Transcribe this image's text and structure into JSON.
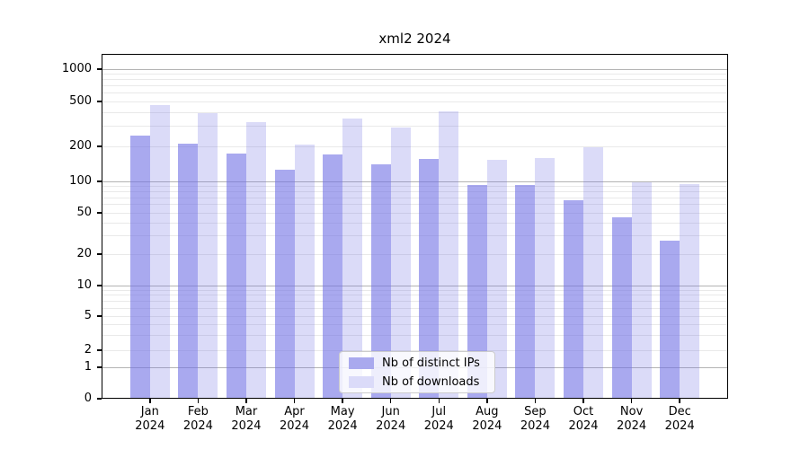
{
  "title": "xml2 2024",
  "chart_data": {
    "type": "bar",
    "title": "xml2 2024",
    "categories": [
      "Jan 2024",
      "Feb 2024",
      "Mar 2024",
      "Apr 2024",
      "May 2024",
      "Jun 2024",
      "Jul 2024",
      "Aug 2024",
      "Sep 2024",
      "Oct 2024",
      "Nov 2024",
      "Dec 2024"
    ],
    "series": [
      {
        "name": "Nb of distinct IPs",
        "color": "rgba(112,112,228,0.6)",
        "legend_swatch": "#a9a9ee",
        "values": [
          248,
          213,
          172,
          126,
          170,
          141,
          155,
          93,
          93,
          66,
          45,
          27
        ]
      },
      {
        "name": "Nb of downloads",
        "color": "rgba(112,112,228,0.25)",
        "legend_swatch": "#dbdbf9",
        "values": [
          465,
          395,
          330,
          208,
          350,
          292,
          410,
          152,
          160,
          195,
          98,
          95
        ]
      }
    ],
    "y_ticks": [
      0,
      1,
      2,
      5,
      10,
      20,
      50,
      100,
      200,
      500,
      1000
    ],
    "y_scale": "symlog",
    "ylim": [
      0,
      1300
    ],
    "grid": true,
    "legend_position": "lower center",
    "xlabel": "",
    "ylabel": ""
  }
}
